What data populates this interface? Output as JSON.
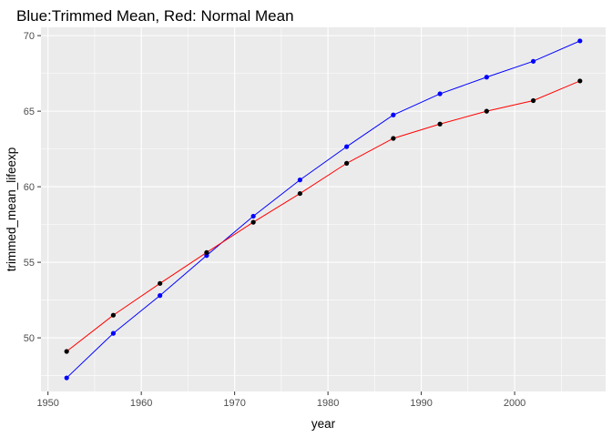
{
  "chart_data": {
    "type": "line",
    "title": "Blue:Trimmed Mean, Red: Normal Mean",
    "xlabel": "year",
    "ylabel": "trimmed_mean_lifeexp",
    "xlim": [
      1949.25,
      2009.75
    ],
    "ylim": [
      46.45,
      70.55
    ],
    "x_ticks": [
      1950,
      1960,
      1970,
      1980,
      1990,
      2000
    ],
    "x_tick_labels": [
      "1950",
      "1960",
      "1970",
      "1980",
      "1990",
      "2000"
    ],
    "y_ticks": [
      50,
      55,
      60,
      65,
      70
    ],
    "y_tick_labels": [
      "50",
      "55",
      "60",
      "65",
      "70"
    ],
    "grid": true,
    "panel_background": "#ebebeb",
    "grid_color": "#ffffff",
    "x": [
      1952,
      1957,
      1962,
      1967,
      1972,
      1977,
      1982,
      1987,
      1992,
      1997,
      2002,
      2007
    ],
    "series": [
      {
        "line_color": "#0000ff",
        "point_color": "#0000ff",
        "values": [
          47.35,
          50.3,
          52.8,
          55.45,
          58.05,
          60.45,
          62.65,
          64.75,
          66.15,
          67.25,
          68.3,
          69.65
        ]
      },
      {
        "line_color": "#ff0000",
        "point_color": "#000000",
        "values": [
          49.1,
          51.5,
          53.6,
          55.65,
          57.65,
          59.55,
          61.55,
          63.2,
          64.15,
          65.0,
          65.7,
          67.0
        ]
      }
    ]
  }
}
